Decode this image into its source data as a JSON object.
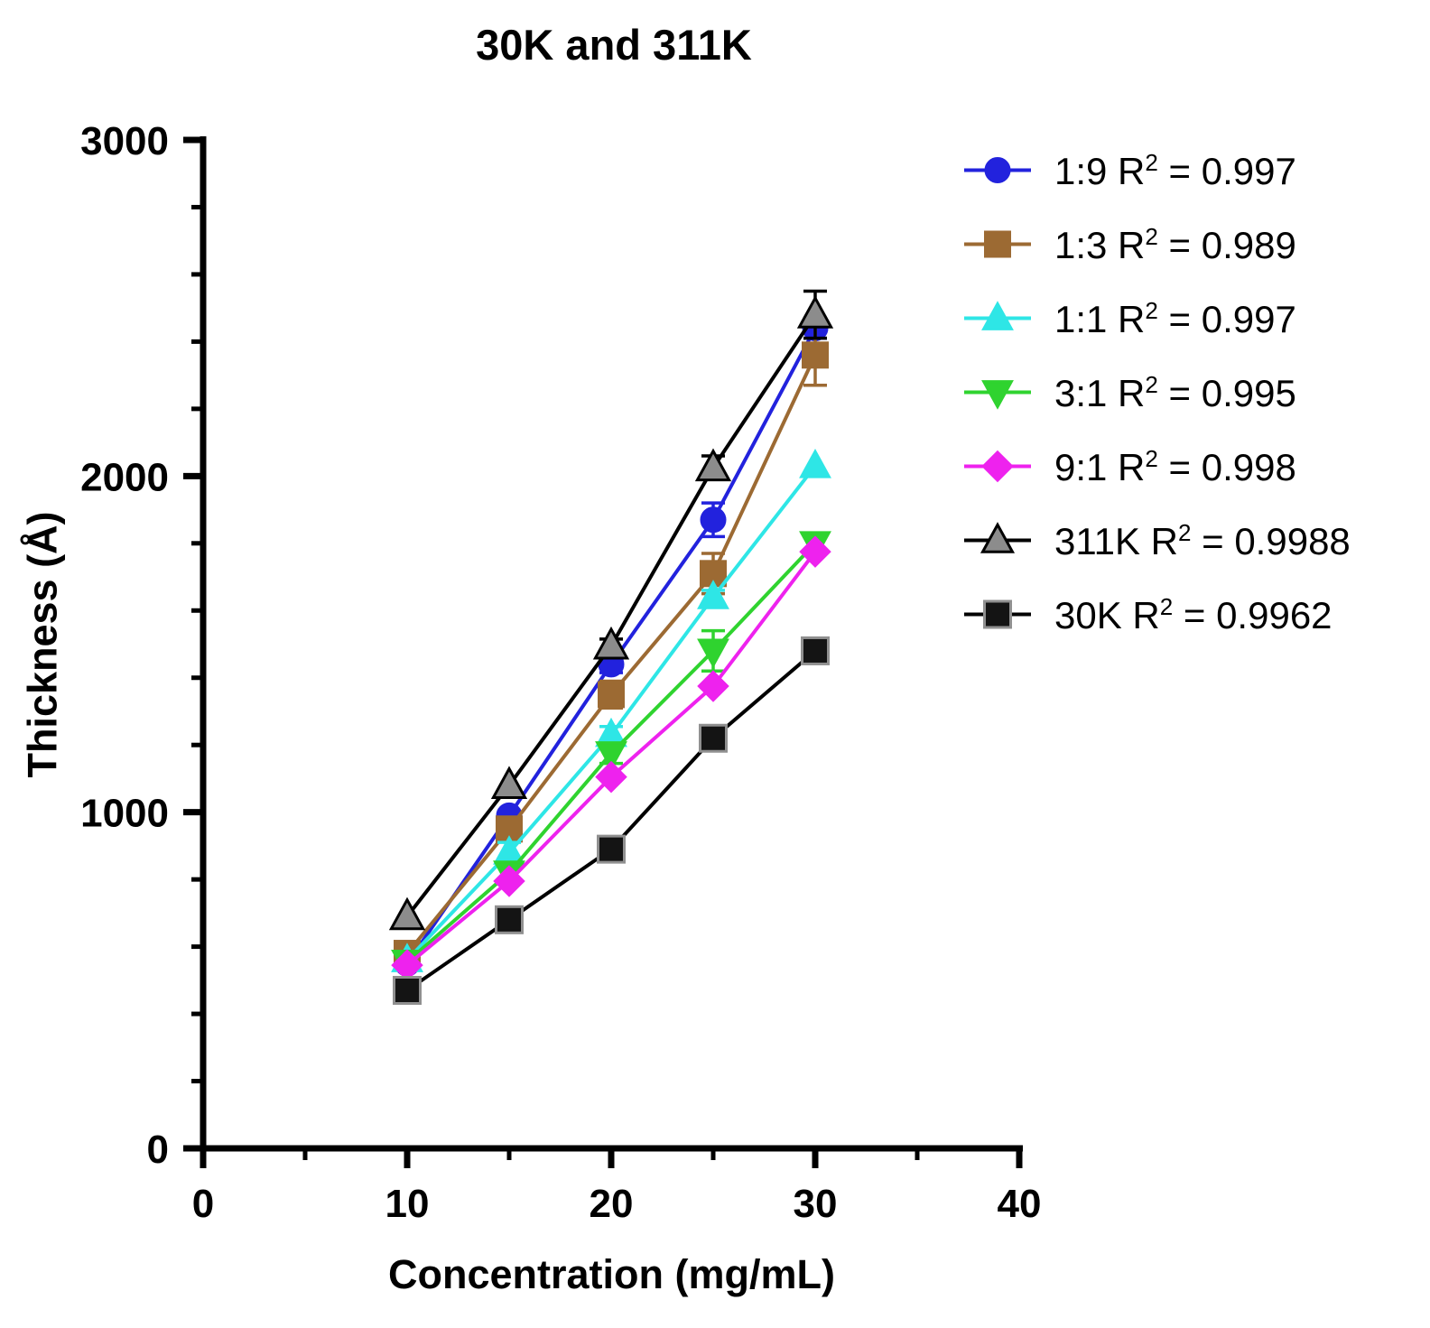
{
  "chart_data": {
    "type": "line",
    "title": "30K and 311K",
    "xlabel": "Concentration (mg/mL)",
    "ylabel": "Thickness (Å)",
    "xlim": [
      0,
      40
    ],
    "ylim": [
      0,
      3000
    ],
    "x_ticks": [
      0,
      10,
      20,
      30,
      40
    ],
    "y_ticks": [
      0,
      1000,
      2000,
      3000
    ],
    "x_minor_step": 5,
    "y_minor_step": 200,
    "grid": false,
    "legend_position": "right",
    "x": [
      10,
      15,
      20,
      25,
      30
    ],
    "series": [
      {
        "name": "1:9",
        "r2": "0.997",
        "marker": "circle",
        "marker_color": "#2222dd",
        "marker_stroke": "#2222dd",
        "line_color": "#2222dd",
        "marker_size": 26,
        "values": [
          550,
          990,
          1440,
          1870,
          2440
        ],
        "errors": [
          0,
          0,
          25,
          50,
          30
        ]
      },
      {
        "name": "1:3",
        "r2": "0.989",
        "marker": "square",
        "marker_color": "#9c6a33",
        "marker_stroke": "#9c6a33",
        "line_color": "#9c6a33",
        "marker_size": 27,
        "values": [
          580,
          950,
          1350,
          1710,
          2360
        ],
        "errors": [
          0,
          20,
          40,
          60,
          90
        ]
      },
      {
        "name": "1:1",
        "r2": "0.997",
        "marker": "triangle-up",
        "marker_color": "#2ee6e6",
        "marker_stroke": "#2ee6e6",
        "line_color": "#2ee6e6",
        "marker_size": 28,
        "values": [
          560,
          880,
          1230,
          1640,
          2030
        ],
        "errors": [
          0,
          30,
          25,
          20,
          0
        ]
      },
      {
        "name": "3:1",
        "r2": "0.995",
        "marker": "triangle-down",
        "marker_color": "#2fd32f",
        "marker_stroke": "#2fd32f",
        "line_color": "#2fd32f",
        "marker_size": 28,
        "values": [
          555,
          820,
          1175,
          1480,
          1800
        ],
        "errors": [
          0,
          20,
          30,
          60,
          0
        ]
      },
      {
        "name": "9:1",
        "r2": "0.998",
        "marker": "diamond",
        "marker_color": "#ee22ee",
        "marker_stroke": "#ee22ee",
        "line_color": "#ee22ee",
        "marker_size": 25,
        "values": [
          545,
          795,
          1105,
          1375,
          1775
        ],
        "errors": [
          0,
          0,
          0,
          0,
          0
        ]
      },
      {
        "name": "311K",
        "r2": "0.9988",
        "marker": "triangle-up",
        "marker_color": "#8c8c8c",
        "marker_stroke": "#000000",
        "line_color": "#000000",
        "marker_size": 32,
        "values": [
          690,
          1080,
          1495,
          2025,
          2480
        ],
        "errors": [
          0,
          0,
          20,
          35,
          70
        ]
      },
      {
        "name": "30K",
        "r2": "0.9962",
        "marker": "square",
        "marker_color": "#141414",
        "marker_stroke": "#909090",
        "line_color": "#000000",
        "marker_size": 29,
        "values": [
          470,
          680,
          890,
          1220,
          1480
        ],
        "errors": [
          0,
          0,
          0,
          0,
          0
        ]
      }
    ]
  }
}
